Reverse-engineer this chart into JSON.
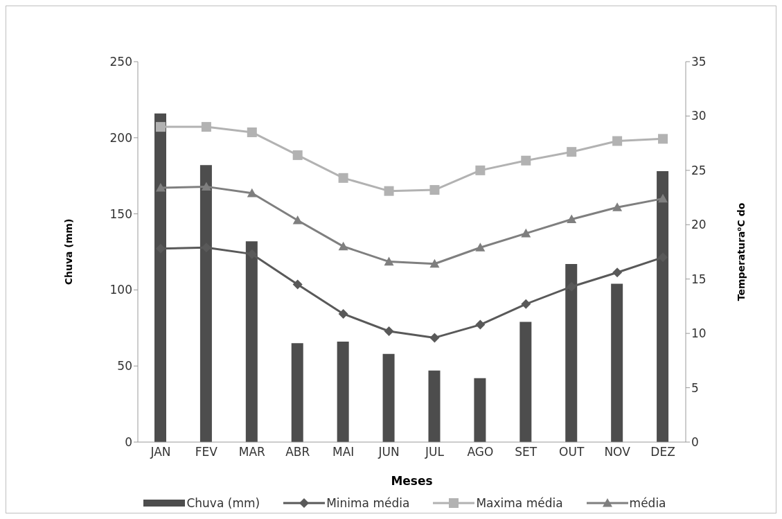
{
  "chart_data": {
    "type": "bar",
    "xlabel": "Meses",
    "ylabel": "Chuva (mm)",
    "y2label": "Temperatura⁰C do",
    "categories": [
      "JAN",
      "FEV",
      "MAR",
      "ABR",
      "MAI",
      "JUN",
      "JUL",
      "AGO",
      "SET",
      "OUT",
      "NOV",
      "DEZ"
    ],
    "series": [
      {
        "name": "Chuva (mm)",
        "color": "#4d4d4d",
        "values": [
          216,
          182,
          132,
          65,
          66,
          58,
          47,
          42,
          79,
          117,
          104,
          178
        ]
      },
      {
        "name": "Minima média",
        "type": "line",
        "axis": "y2",
        "marker": "diamond",
        "color": "#595959",
        "values": [
          17.8,
          17.9,
          17.3,
          14.5,
          11.8,
          10.2,
          9.6,
          10.8,
          12.7,
          14.3,
          15.6,
          17.0
        ]
      },
      {
        "name": "Maxima média",
        "type": "line",
        "axis": "y2",
        "marker": "square",
        "color": "#b2b2b2",
        "values": [
          29.0,
          29.0,
          28.5,
          26.4,
          24.3,
          23.1,
          23.2,
          25.0,
          25.9,
          26.7,
          27.7,
          27.9
        ]
      },
      {
        "name": "média",
        "type": "line",
        "axis": "y2",
        "marker": "triangle",
        "color": "#7f7f7f",
        "values": [
          23.4,
          23.5,
          22.9,
          20.4,
          18.0,
          16.6,
          16.4,
          17.9,
          19.2,
          20.5,
          21.6,
          22.4
        ]
      }
    ],
    "ylim": [
      0,
      250
    ],
    "yticks": [
      0,
      50,
      100,
      150,
      200,
      250
    ],
    "y2lim": [
      0,
      35
    ],
    "y2ticks": [
      0,
      5,
      10,
      15,
      20,
      25,
      30,
      35
    ],
    "grid": false,
    "legend": "bottom"
  }
}
